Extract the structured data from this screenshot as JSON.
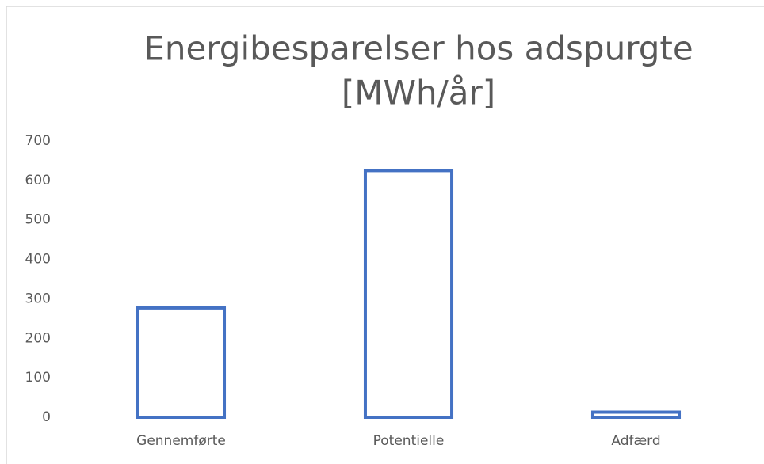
{
  "chart_data": {
    "type": "bar",
    "title": [
      "Energibesparelser hos adspurgte",
      "[MWh/år]"
    ],
    "categories": [
      "Gennemførte",
      "Potentielle",
      "Adfærd"
    ],
    "values": [
      277,
      625,
      13
    ],
    "color": "#4472c4",
    "ylim": [
      0,
      700
    ],
    "yticks": [
      0,
      100,
      200,
      300,
      400,
      500,
      600,
      700
    ],
    "grid": false
  }
}
